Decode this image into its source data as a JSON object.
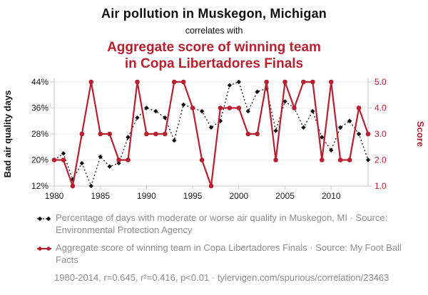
{
  "header": {
    "title": "Air pollution in Muskegon, Michigan",
    "connector": "correlates with",
    "subtitle": "Aggregate score of winning team in Copa Libertadores Finals",
    "subtitle_lines": [
      "Aggregate score of winning team",
      "in Copa Libertadores Finals"
    ]
  },
  "colors": {
    "accent": "#b81f2f",
    "series_air_quality": "#111111",
    "series_score": "#b81f2f",
    "grid": "#ececec",
    "axis": "#c9c9c9",
    "muted_text": "#8d8d8d"
  },
  "chart_data": {
    "type": "line",
    "title": "Air pollution in Muskegon, Michigan correlates with Aggregate score of winning team in Copa Libertadores Finals",
    "x": [
      1980,
      1981,
      1982,
      1983,
      1984,
      1985,
      1986,
      1987,
      1988,
      1989,
      1990,
      1991,
      1992,
      1993,
      1994,
      1995,
      1996,
      1997,
      1998,
      1999,
      2000,
      2001,
      2002,
      2003,
      2004,
      2005,
      2006,
      2007,
      2008,
      2009,
      2010,
      2011,
      2012,
      2013,
      2014
    ],
    "series": [
      {
        "name": "Percentage of days with moderate or worse air quality in Muskegon, MI",
        "axis": "left",
        "color": "#111111",
        "style": "dashed",
        "marker": "diamond",
        "values": [
          20,
          22,
          14,
          19,
          12,
          21,
          18,
          19,
          27,
          33,
          36,
          35,
          33,
          26,
          37,
          36,
          35,
          30,
          32,
          43,
          44,
          35,
          41,
          42,
          29,
          38,
          36,
          30,
          35,
          27,
          23,
          30,
          32,
          28,
          20
        ]
      },
      {
        "name": "Aggregate score of winning team in Copa Libertadores Finals",
        "axis": "right",
        "color": "#b81f2f",
        "style": "solid",
        "marker": "circle",
        "values": [
          2,
          2,
          1,
          3,
          5,
          3,
          3,
          2,
          2,
          5,
          3,
          3,
          3,
          5,
          5,
          4,
          2,
          1,
          4,
          4,
          4,
          3,
          3,
          5,
          2,
          5,
          4,
          5,
          5,
          2,
          5,
          2,
          2,
          4,
          3
        ]
      }
    ],
    "left_axis": {
      "label": "Bad air quality days",
      "range": [
        12,
        44
      ],
      "ticks": [
        12,
        20,
        28,
        36,
        44
      ],
      "tick_labels": [
        "12%",
        "20%",
        "28%",
        "36%",
        "44%"
      ]
    },
    "right_axis": {
      "label": "Score",
      "range": [
        1,
        5
      ],
      "ticks": [
        1,
        2,
        3,
        4,
        5
      ],
      "tick_labels": [
        "1.0",
        "2.0",
        "3.0",
        "4.0",
        "5.0"
      ]
    },
    "x_axis": {
      "range": [
        1980,
        2014
      ],
      "ticks": [
        1980,
        1985,
        1990,
        1995,
        2000,
        2005,
        2010
      ]
    },
    "grid": true,
    "legend_position": "below"
  },
  "legend": [
    {
      "swatch": "black-dashed-diamond",
      "text": "Percentage of days with moderate or worse air quality in Muskegon, MI · Source: Environmental Protection Agency"
    },
    {
      "swatch": "red-solid-circle",
      "text": "Aggregate score of winning team in Copa Libertadores Finals · Source: My Foot Ball Facts"
    }
  ],
  "footer": {
    "text": "1980-2014, r=0.645, r²=0.416, p<0.01 · tylervigen.com/spurious/correlation/23463"
  }
}
